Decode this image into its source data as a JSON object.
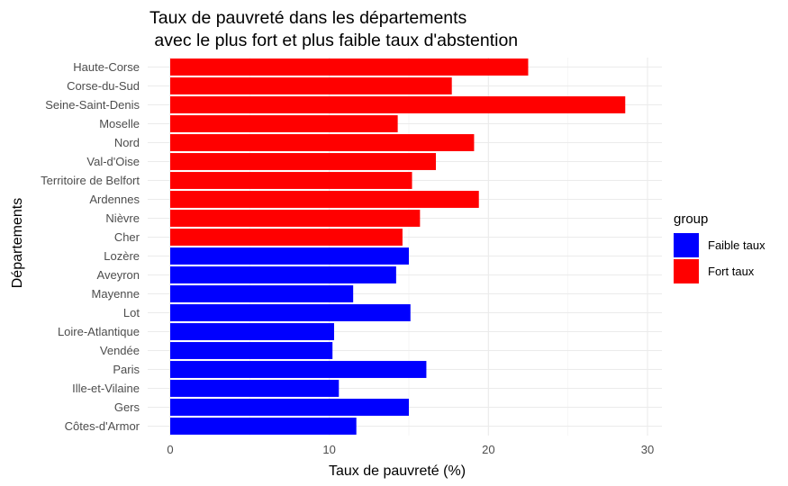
{
  "chart_data": {
    "type": "bar",
    "orientation": "horizontal",
    "title": [
      "Taux de pauvreté dans les départements",
      " avec le plus fort et plus faible taux d'abstention"
    ],
    "xlabel": "Taux de pauvreté (%)",
    "ylabel": "Départements",
    "xlim": [
      0,
      30
    ],
    "x_ticks": [
      "0",
      "10",
      "20",
      "30"
    ],
    "grid": true,
    "legend": {
      "title": "group",
      "position": "right",
      "entries": [
        {
          "label": "Faible taux",
          "color": "#0000FF"
        },
        {
          "label": "Fort taux",
          "color": "#FF0000"
        }
      ]
    },
    "categories": [
      "Haute-Corse",
      "Corse-du-Sud",
      "Seine-Saint-Denis",
      "Moselle",
      "Nord",
      "Val-d'Oise",
      "Territoire de Belfort",
      "Ardennes",
      "Nièvre",
      "Cher",
      "Lozère",
      "Aveyron",
      "Mayenne",
      "Lot",
      "Loire-Atlantique",
      "Vendée",
      "Paris",
      "Ille-et-Vilaine",
      "Gers",
      "Côtes-d'Armor"
    ],
    "values": [
      22.5,
      17.7,
      28.6,
      14.3,
      19.1,
      16.7,
      15.2,
      19.4,
      15.7,
      14.6,
      15.0,
      14.2,
      11.5,
      15.1,
      10.3,
      10.2,
      16.1,
      10.6,
      15.0,
      11.7
    ],
    "groups": [
      "Fort taux",
      "Fort taux",
      "Fort taux",
      "Fort taux",
      "Fort taux",
      "Fort taux",
      "Fort taux",
      "Fort taux",
      "Fort taux",
      "Fort taux",
      "Faible taux",
      "Faible taux",
      "Faible taux",
      "Faible taux",
      "Faible taux",
      "Faible taux",
      "Faible taux",
      "Faible taux",
      "Faible taux",
      "Faible taux"
    ]
  }
}
